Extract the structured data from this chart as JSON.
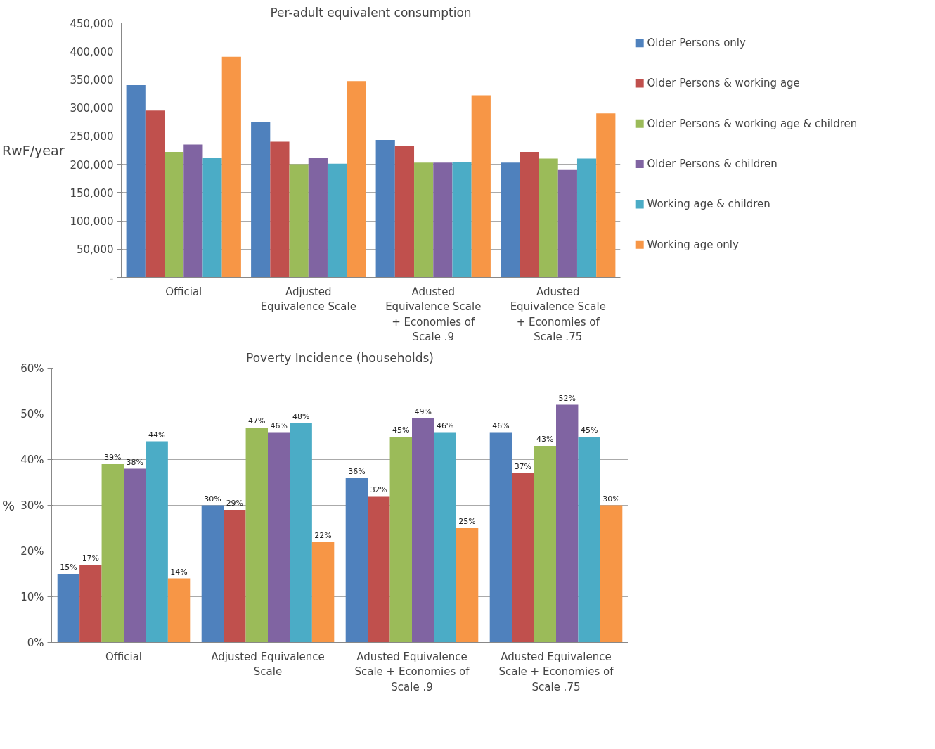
{
  "chart_data": [
    {
      "type": "bar",
      "title": "Per-adult equivalent consumption",
      "ylabel": "RwF/year",
      "categories": [
        "Official",
        "Adjusted Equivalence Scale",
        "Adusted Equivalence Scale + Economies of Scale .9",
        "Adusted Equivalence Scale + Economies of Scale .75"
      ],
      "series": [
        {
          "name": "Older Persons only",
          "color": "#4f81bd",
          "values": [
            340000,
            275000,
            243000,
            203000
          ]
        },
        {
          "name": "Older Persons & working age",
          "color": "#c0504d",
          "values": [
            295000,
            240000,
            233000,
            222000
          ]
        },
        {
          "name": "Older Persons & working age & children",
          "color": "#9bbb59",
          "values": [
            222000,
            200000,
            203000,
            210000
          ]
        },
        {
          "name": "Older Persons & children",
          "color": "#8064a2",
          "values": [
            235000,
            211000,
            203000,
            190000
          ]
        },
        {
          "name": "Working age & children",
          "color": "#4bacc6",
          "values": [
            212000,
            201000,
            204000,
            210000
          ]
        },
        {
          "name": "Working age only",
          "color": "#f79646",
          "values": [
            390000,
            347000,
            322000,
            290000
          ]
        }
      ],
      "ylim": [
        0,
        450000
      ],
      "yticks": [
        {
          "value": 0,
          "label": "-"
        },
        {
          "value": 50000,
          "label": "50,000"
        },
        {
          "value": 100000,
          "label": "100,000"
        },
        {
          "value": 150000,
          "label": "150,000"
        },
        {
          "value": 200000,
          "label": "200,000"
        },
        {
          "value": 250000,
          "label": "250,000"
        },
        {
          "value": 300000,
          "label": "300,000"
        },
        {
          "value": 350000,
          "label": "350,000"
        },
        {
          "value": 400000,
          "label": "400,000"
        },
        {
          "value": 450000,
          "label": "450,000"
        }
      ],
      "grid": "y",
      "legend": "right"
    },
    {
      "type": "bar",
      "title": "Poverty Incidence (households)",
      "ylabel": "%",
      "categories": [
        "Official",
        "Adjusted Equivalence Scale",
        "Adusted Equivalence Scale + Economies of Scale .9",
        "Adusted Equivalence Scale + Economies of Scale .75"
      ],
      "series": [
        {
          "color": "#4f81bd",
          "values": [
            15,
            30,
            36,
            46
          ],
          "value_labels": [
            "15%",
            "30%",
            "36%",
            "46%"
          ]
        },
        {
          "color": "#c0504d",
          "values": [
            17,
            29,
            32,
            37
          ],
          "value_labels": [
            "17%",
            "29%",
            "32%",
            "37%"
          ]
        },
        {
          "color": "#9bbb59",
          "values": [
            39,
            47,
            45,
            43
          ],
          "value_labels": [
            "39%",
            "47%",
            "45%",
            "43%"
          ]
        },
        {
          "color": "#8064a2",
          "values": [
            38,
            46,
            49,
            52
          ],
          "value_labels": [
            "38%",
            "46%",
            "49%",
            "52%"
          ]
        },
        {
          "color": "#4bacc6",
          "values": [
            44,
            48,
            46,
            45
          ],
          "value_labels": [
            "44%",
            "48%",
            "46%",
            "45%"
          ]
        },
        {
          "color": "#f79646",
          "values": [
            14,
            22,
            25,
            30
          ],
          "value_labels": [
            "14%",
            "22%",
            "25%",
            "30%"
          ]
        }
      ],
      "ylim": [
        0,
        60
      ],
      "yticks": [
        {
          "value": 0,
          "label": "0%"
        },
        {
          "value": 10,
          "label": "10%"
        },
        {
          "value": 20,
          "label": "20%"
        },
        {
          "value": 30,
          "label": "30%"
        },
        {
          "value": 40,
          "label": "40%"
        },
        {
          "value": 50,
          "label": "50%"
        },
        {
          "value": 60,
          "label": "60%"
        }
      ],
      "grid": "y"
    }
  ]
}
